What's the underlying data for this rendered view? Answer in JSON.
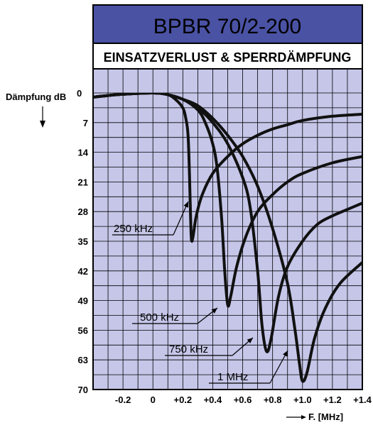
{
  "chart_data": {
    "type": "line",
    "title": "BPBR 70/2-200",
    "subtitle": "EINSATZVERLUST & SPERRDÄMPFUNG",
    "ylabel": "Dämpfung dB",
    "xlabel": "F. [MHz]",
    "xlim": [
      -0.4,
      1.4
    ],
    "ylim": [
      0,
      70
    ],
    "y_inverted": true,
    "grid": true,
    "x_ticks": [
      {
        "value": -0.2,
        "label": "-0.2"
      },
      {
        "value": 0.0,
        "label": "0"
      },
      {
        "value": 0.2,
        "label": "+0.2"
      },
      {
        "value": 0.4,
        "label": "+0.4"
      },
      {
        "value": 0.6,
        "label": "+0.6"
      },
      {
        "value": 0.8,
        "label": "+0.8"
      },
      {
        "value": 1.0,
        "label": "+1.0"
      },
      {
        "value": 1.2,
        "label": "+1.2"
      },
      {
        "value": 1.4,
        "label": "+1.4"
      }
    ],
    "y_ticks": [
      {
        "value": 0,
        "label": "0"
      },
      {
        "value": 7,
        "label": "7"
      },
      {
        "value": 14,
        "label": "14"
      },
      {
        "value": 21,
        "label": "21"
      },
      {
        "value": 28,
        "label": "28"
      },
      {
        "value": 35,
        "label": "35"
      },
      {
        "value": 42,
        "label": "42"
      },
      {
        "value": 49,
        "label": "49"
      },
      {
        "value": 56,
        "label": "56"
      },
      {
        "value": 63,
        "label": "63"
      },
      {
        "value": 70,
        "label": "70"
      }
    ],
    "series": [
      {
        "name": "250 kHz",
        "points": [
          [
            -0.4,
            1.0
          ],
          [
            -0.3,
            0.6
          ],
          [
            -0.2,
            0.3
          ],
          [
            0.0,
            0.0
          ],
          [
            0.1,
            0.4
          ],
          [
            0.15,
            1.5
          ],
          [
            0.2,
            3.5
          ],
          [
            0.22,
            6.0
          ],
          [
            0.235,
            10.0
          ],
          [
            0.245,
            20.0
          ],
          [
            0.25,
            27.0
          ],
          [
            0.255,
            33.0
          ],
          [
            0.26,
            35.0
          ],
          [
            0.27,
            33.5
          ],
          [
            0.29,
            29.0
          ],
          [
            0.33,
            24.0
          ],
          [
            0.4,
            19.0
          ],
          [
            0.5,
            15.0
          ],
          [
            0.6,
            12.0
          ],
          [
            0.7,
            10.0
          ],
          [
            0.8,
            8.5
          ],
          [
            0.9,
            7.5
          ],
          [
            1.0,
            6.5
          ],
          [
            1.2,
            5.5
          ],
          [
            1.4,
            5.0
          ]
        ]
      },
      {
        "name": "500 kHz",
        "points": [
          [
            -0.4,
            1.0
          ],
          [
            -0.3,
            0.6
          ],
          [
            -0.2,
            0.3
          ],
          [
            0.0,
            0.0
          ],
          [
            0.1,
            0.4
          ],
          [
            0.2,
            1.5
          ],
          [
            0.3,
            4.0
          ],
          [
            0.35,
            7.0
          ],
          [
            0.4,
            12.0
          ],
          [
            0.43,
            18.0
          ],
          [
            0.46,
            30.0
          ],
          [
            0.48,
            42.0
          ],
          [
            0.5,
            50.0
          ],
          [
            0.52,
            48.0
          ],
          [
            0.56,
            41.0
          ],
          [
            0.62,
            34.0
          ],
          [
            0.7,
            28.0
          ],
          [
            0.8,
            24.0
          ],
          [
            0.9,
            21.0
          ],
          [
            1.0,
            19.0
          ],
          [
            1.2,
            16.5
          ],
          [
            1.4,
            15.0
          ]
        ]
      },
      {
        "name": "750 kHz",
        "points": [
          [
            -0.4,
            1.0
          ],
          [
            -0.3,
            0.6
          ],
          [
            -0.2,
            0.3
          ],
          [
            0.0,
            0.0
          ],
          [
            0.1,
            0.4
          ],
          [
            0.2,
            1.5
          ],
          [
            0.3,
            3.5
          ],
          [
            0.4,
            7.0
          ],
          [
            0.5,
            12.0
          ],
          [
            0.6,
            20.0
          ],
          [
            0.65,
            27.0
          ],
          [
            0.7,
            42.0
          ],
          [
            0.73,
            55.0
          ],
          [
            0.76,
            61.0
          ],
          [
            0.79,
            58.0
          ],
          [
            0.84,
            48.0
          ],
          [
            0.9,
            41.0
          ],
          [
            1.0,
            35.0
          ],
          [
            1.1,
            31.0
          ],
          [
            1.2,
            29.0
          ],
          [
            1.3,
            27.5
          ],
          [
            1.4,
            26.0
          ]
        ]
      },
      {
        "name": "1 MHz",
        "points": [
          [
            -0.4,
            1.0
          ],
          [
            -0.3,
            0.6
          ],
          [
            -0.2,
            0.3
          ],
          [
            0.0,
            0.0
          ],
          [
            0.1,
            0.4
          ],
          [
            0.2,
            1.5
          ],
          [
            0.3,
            3.0
          ],
          [
            0.4,
            6.0
          ],
          [
            0.5,
            10.0
          ],
          [
            0.6,
            15.0
          ],
          [
            0.7,
            22.0
          ],
          [
            0.8,
            32.0
          ],
          [
            0.9,
            45.0
          ],
          [
            0.95,
            56.0
          ],
          [
            0.98,
            64.0
          ],
          [
            1.0,
            68.0
          ],
          [
            1.03,
            66.0
          ],
          [
            1.08,
            58.0
          ],
          [
            1.15,
            51.0
          ],
          [
            1.25,
            45.0
          ],
          [
            1.4,
            40.0
          ]
        ]
      }
    ],
    "annotations": [
      {
        "text": "250 kHz",
        "series": "250 kHz"
      },
      {
        "text": "500 kHz",
        "series": "500 kHz"
      },
      {
        "text": "750 kHz",
        "series": "750 kHz"
      },
      {
        "text": "1 MHz",
        "series": "1 MHz"
      }
    ]
  }
}
